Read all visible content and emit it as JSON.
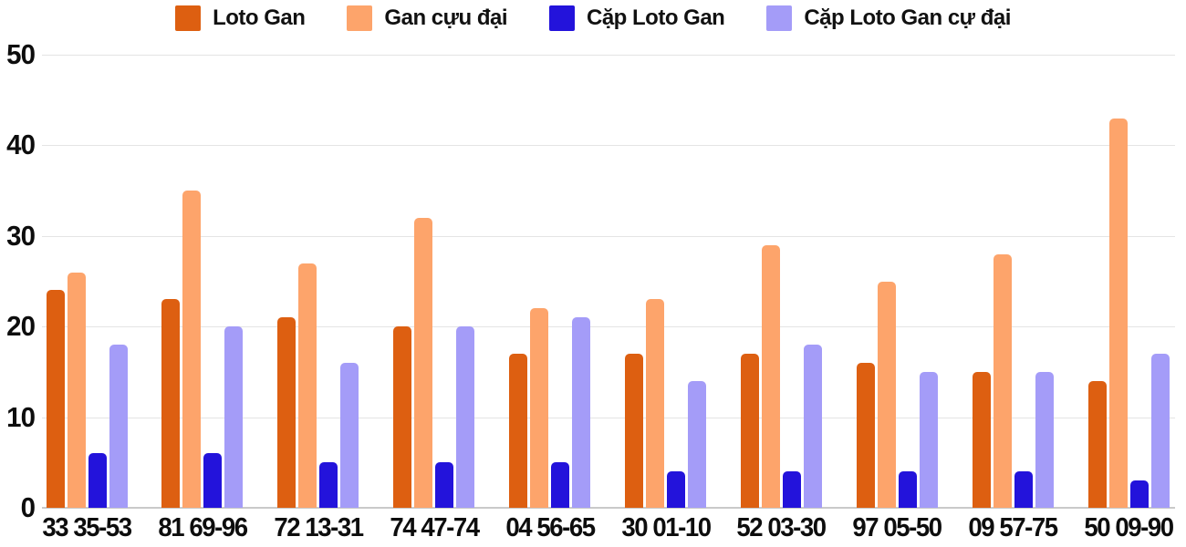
{
  "chart_data": {
    "type": "bar",
    "title": "",
    "categories": [
      "33 35-53",
      "81 69-96",
      "72 13-31",
      "74 47-74",
      "04 56-65",
      "30 01-10",
      "52 03-30",
      "97 05-50",
      "09 57-75",
      "50 09-90"
    ],
    "series": [
      {
        "name": "Loto Gan",
        "color": "#dd5f11",
        "values": [
          24,
          23,
          21,
          20,
          17,
          17,
          17,
          16,
          15,
          14
        ]
      },
      {
        "name": "Gan cựu đại",
        "color": "#fda46b",
        "values": [
          26,
          35,
          27,
          32,
          22,
          23,
          29,
          25,
          28,
          43
        ]
      },
      {
        "name": "Cặp Loto Gan",
        "color": "#2313db",
        "values": [
          6,
          6,
          5,
          5,
          5,
          4,
          4,
          4,
          4,
          3
        ]
      },
      {
        "name": "Cặp Loto Gan cự đại",
        "color": "#a49cf8",
        "values": [
          18,
          20,
          16,
          20,
          21,
          14,
          18,
          15,
          15,
          17
        ]
      }
    ],
    "ylim": [
      0,
      50
    ],
    "yticks": [
      0,
      10,
      20,
      30,
      40,
      50
    ],
    "xlabel": "",
    "ylabel": "",
    "grid": true,
    "legend_position": "top",
    "colors": {
      "gridline": "#e4e4e4",
      "axis_line": "#c9c9c9",
      "tick_text": "#0d0d0d",
      "background": "#ffffff"
    }
  }
}
